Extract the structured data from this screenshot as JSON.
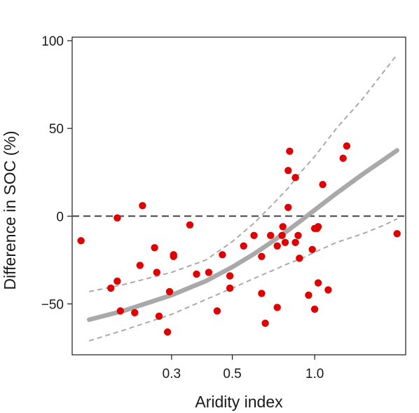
{
  "chart_data": {
    "type": "scatter",
    "title": "",
    "xlabel": "Aridity index",
    "ylabel": "Difference in SOC (%)",
    "x_scale": "log",
    "xlim": [
      0.13,
      2.15
    ],
    "ylim": [
      -79,
      102
    ],
    "x_ticks": [
      0.3,
      0.5,
      1.0
    ],
    "x_tick_labels": [
      "0.3",
      "0.5",
      "1.0"
    ],
    "y_ticks": [
      -50,
      0,
      50,
      100
    ],
    "y_tick_labels": [
      "−50",
      "0",
      "50",
      "100"
    ],
    "grid": false,
    "legend": "none",
    "reference_line": {
      "y": 0,
      "style": "dashed",
      "color": "#444444"
    },
    "points_color": "#e00000",
    "fit_color": "#a9a9a9",
    "ci_color": "#aaaaaa",
    "points": [
      {
        "x": 0.14,
        "y": -14
      },
      {
        "x": 0.18,
        "y": -41
      },
      {
        "x": 0.19,
        "y": -37
      },
      {
        "x": 0.19,
        "y": -1
      },
      {
        "x": 0.195,
        "y": -54
      },
      {
        "x": 0.22,
        "y": -55
      },
      {
        "x": 0.23,
        "y": -28
      },
      {
        "x": 0.235,
        "y": 6
      },
      {
        "x": 0.26,
        "y": -18
      },
      {
        "x": 0.265,
        "y": -32
      },
      {
        "x": 0.27,
        "y": -57
      },
      {
        "x": 0.29,
        "y": -66
      },
      {
        "x": 0.295,
        "y": -43
      },
      {
        "x": 0.305,
        "y": -22
      },
      {
        "x": 0.305,
        "y": -23
      },
      {
        "x": 0.35,
        "y": -5
      },
      {
        "x": 0.37,
        "y": -33
      },
      {
        "x": 0.41,
        "y": -32
      },
      {
        "x": 0.44,
        "y": -54
      },
      {
        "x": 0.46,
        "y": -22
      },
      {
        "x": 0.49,
        "y": -34
      },
      {
        "x": 0.49,
        "y": -41
      },
      {
        "x": 0.55,
        "y": -17
      },
      {
        "x": 0.6,
        "y": -11
      },
      {
        "x": 0.64,
        "y": -23
      },
      {
        "x": 0.64,
        "y": -44
      },
      {
        "x": 0.66,
        "y": -61
      },
      {
        "x": 0.69,
        "y": -11
      },
      {
        "x": 0.73,
        "y": -52
      },
      {
        "x": 0.73,
        "y": -17
      },
      {
        "x": 0.76,
        "y": -11
      },
      {
        "x": 0.765,
        "y": -6
      },
      {
        "x": 0.78,
        "y": -15
      },
      {
        "x": 0.8,
        "y": 5
      },
      {
        "x": 0.8,
        "y": 26
      },
      {
        "x": 0.81,
        "y": 37
      },
      {
        "x": 0.85,
        "y": 22
      },
      {
        "x": 0.85,
        "y": -15
      },
      {
        "x": 0.87,
        "y": -11
      },
      {
        "x": 0.88,
        "y": -24
      },
      {
        "x": 0.95,
        "y": -45
      },
      {
        "x": 0.98,
        "y": -19
      },
      {
        "x": 1.0,
        "y": -53
      },
      {
        "x": 1.0,
        "y": -7
      },
      {
        "x": 1.02,
        "y": -7
      },
      {
        "x": 1.03,
        "y": -6
      },
      {
        "x": 1.03,
        "y": -38
      },
      {
        "x": 1.07,
        "y": 18
      },
      {
        "x": 1.12,
        "y": -42
      },
      {
        "x": 1.27,
        "y": 33
      },
      {
        "x": 1.31,
        "y": 40
      },
      {
        "x": 2.0,
        "y": -10
      }
    ],
    "fit": {
      "x": [
        0.15,
        0.2,
        0.3,
        0.4,
        0.5,
        0.6,
        0.7,
        0.8,
        0.9,
        1.0,
        1.2,
        1.5,
        1.8,
        2.0
      ],
      "y": [
        -59,
        -54,
        -45,
        -37,
        -29,
        -21.5,
        -14.5,
        -8,
        -2,
        3.5,
        13,
        24,
        32.5,
        37.5
      ]
    },
    "ci_upper": {
      "x": [
        0.15,
        0.2,
        0.3,
        0.4,
        0.5,
        0.6,
        0.7,
        0.8,
        0.9,
        1.0,
        1.2,
        1.5,
        1.8,
        2.0
      ],
      "y": [
        -43,
        -39,
        -32,
        -25,
        -14.5,
        -4,
        6.5,
        16,
        26,
        34,
        50,
        67,
        83,
        92
      ]
    },
    "ci_lower": {
      "x": [
        0.15,
        0.2,
        0.3,
        0.4,
        0.5,
        0.6,
        0.7,
        0.8,
        0.9,
        1.0,
        1.2,
        1.5,
        1.8,
        2.0
      ],
      "y": [
        -71,
        -65,
        -56,
        -47.5,
        -41,
        -35.5,
        -31,
        -27,
        -24,
        -20.5,
        -15,
        -10,
        -5,
        -1.5
      ]
    }
  }
}
